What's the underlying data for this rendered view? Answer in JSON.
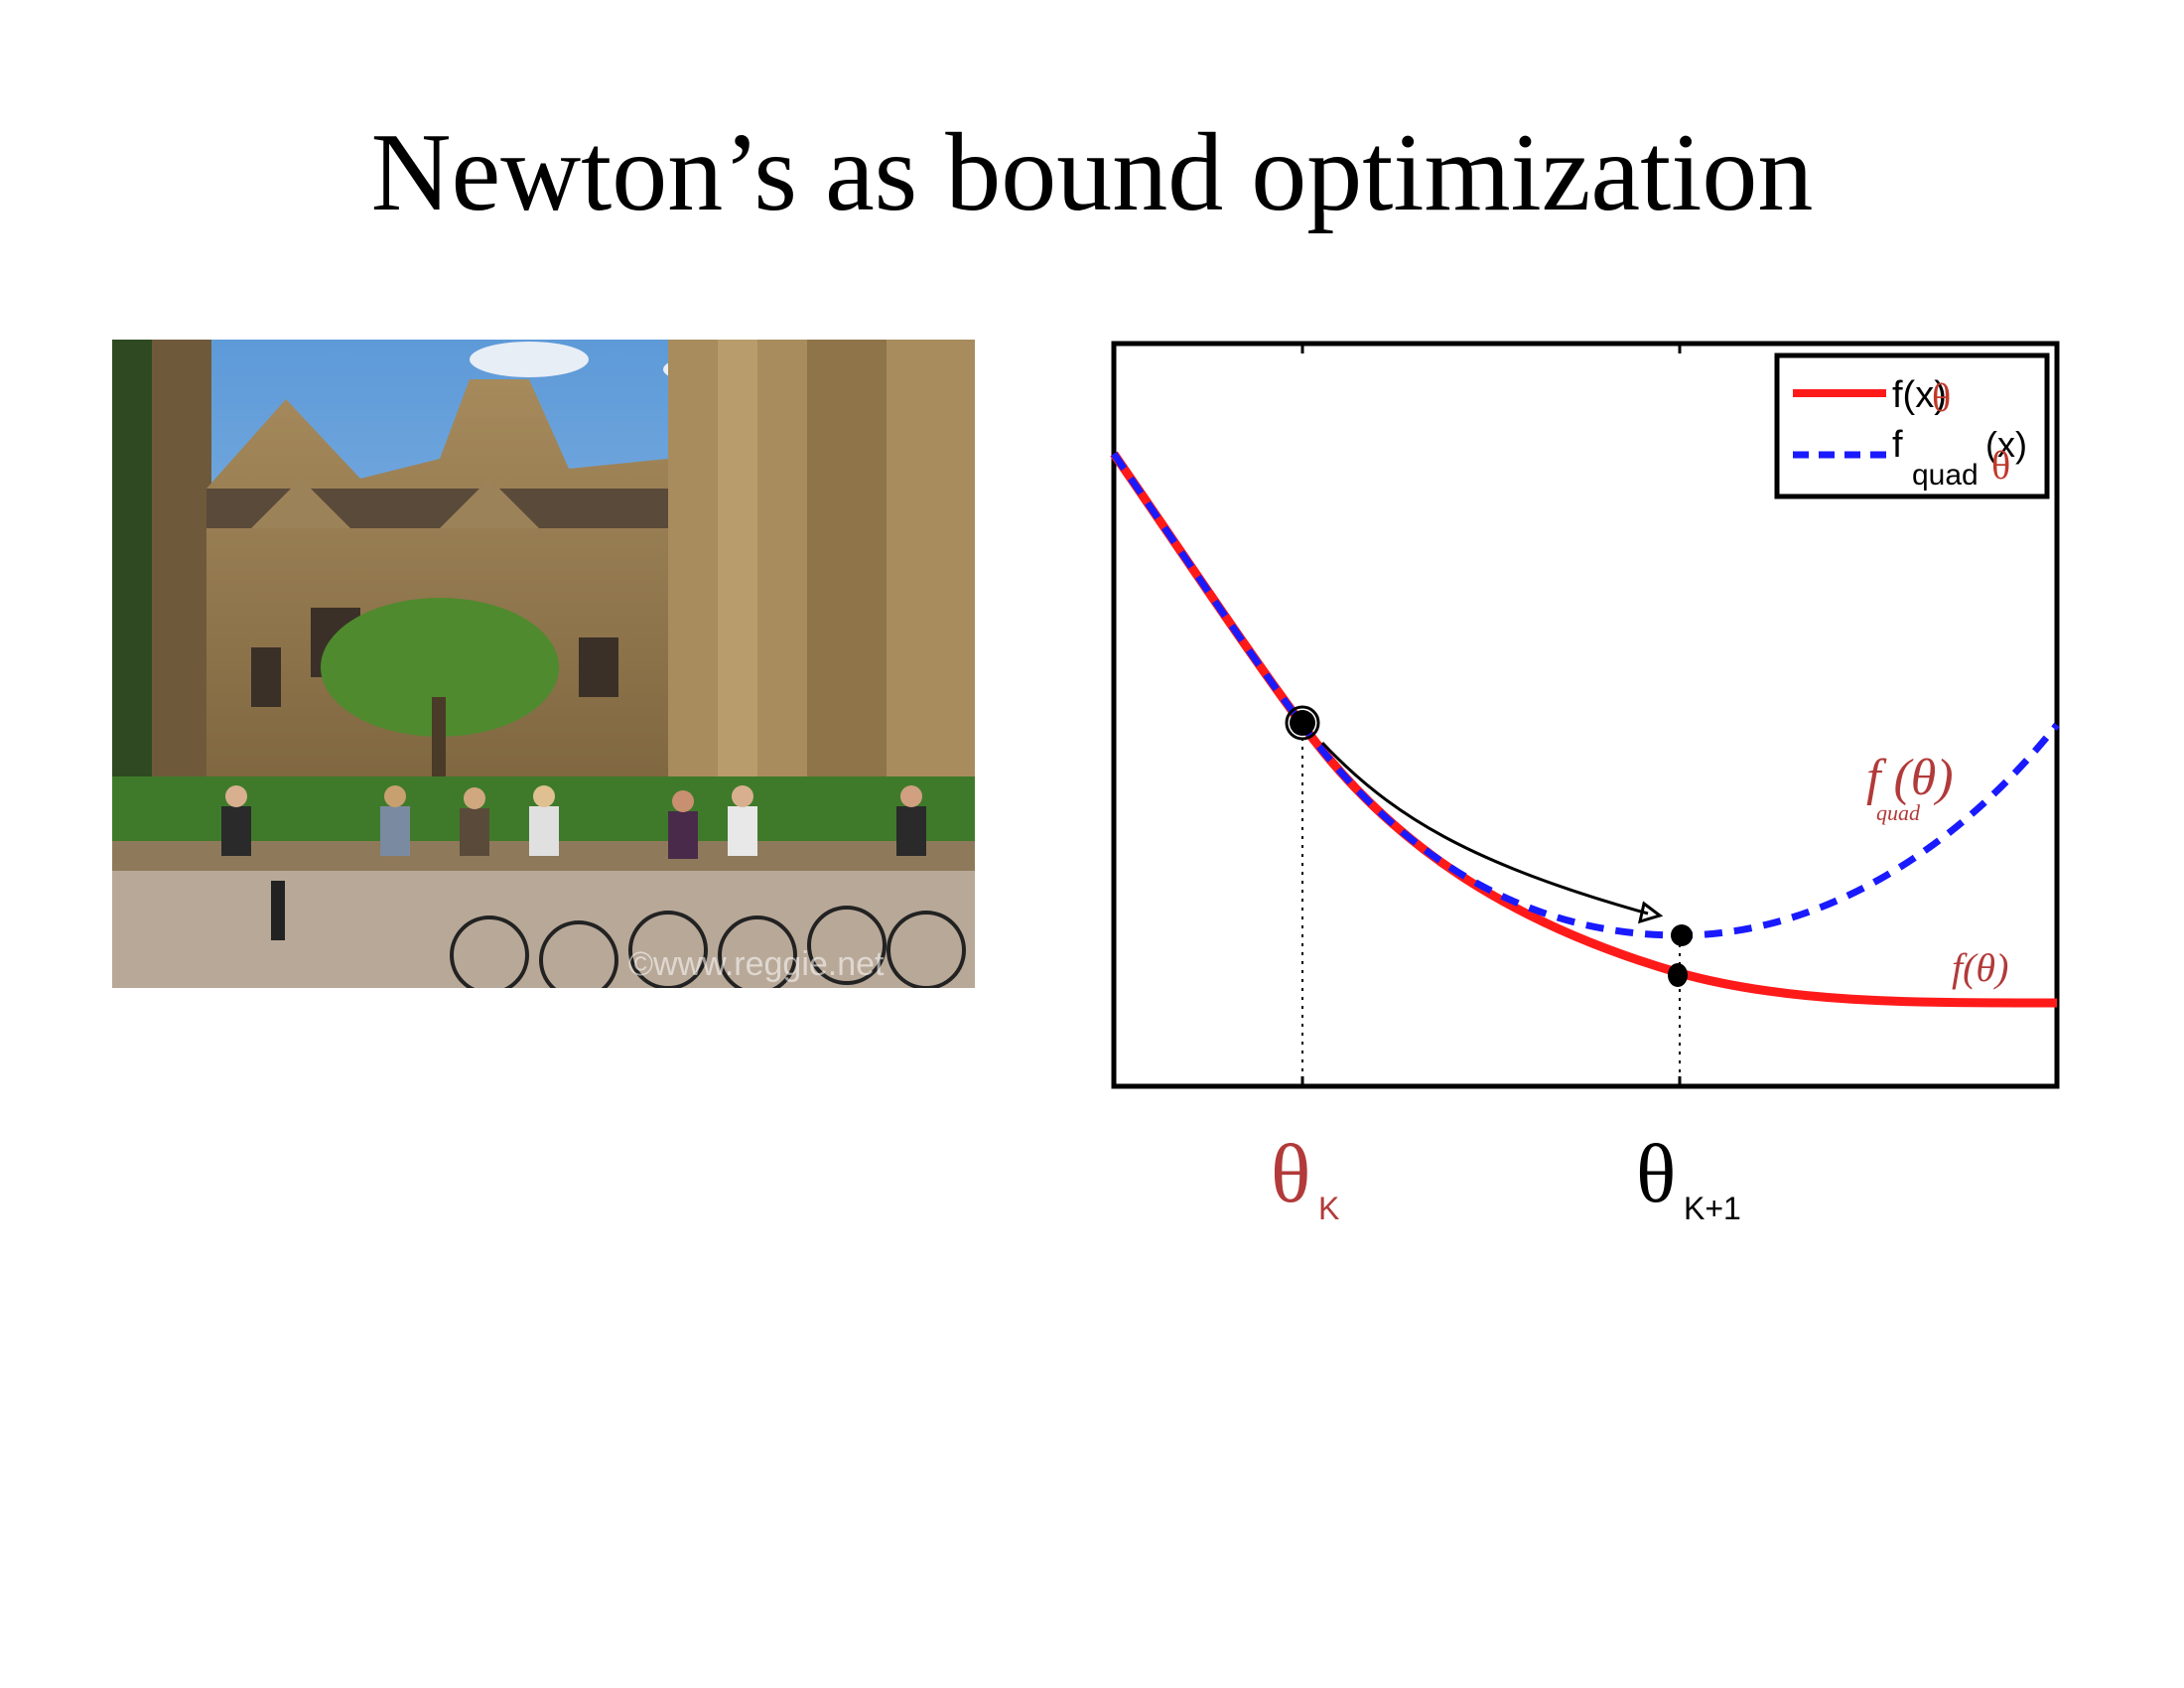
{
  "slide": {
    "title": "Newton’s as bound optimization"
  },
  "photo": {
    "watermark": "©www.reggie.net"
  },
  "plot": {
    "legend": {
      "f": "f(x)",
      "fquad_base": "f",
      "fquad_sub": "quad",
      "fquad_arg": "(x)",
      "theta_mark": "θ"
    },
    "annotations": {
      "fquad_label": "f (θ)",
      "fquad_sub": "quad",
      "f_label": "f(θ)",
      "theta_k": "θ",
      "theta_k_sub": "K",
      "theta_k1": "θ",
      "theta_k1_sub": "K+1"
    },
    "colors": {
      "f": "#ff1a1a",
      "fquad": "#1a1aff",
      "ink_red": "#b23a3a",
      "ink_black": "#000000"
    }
  }
}
